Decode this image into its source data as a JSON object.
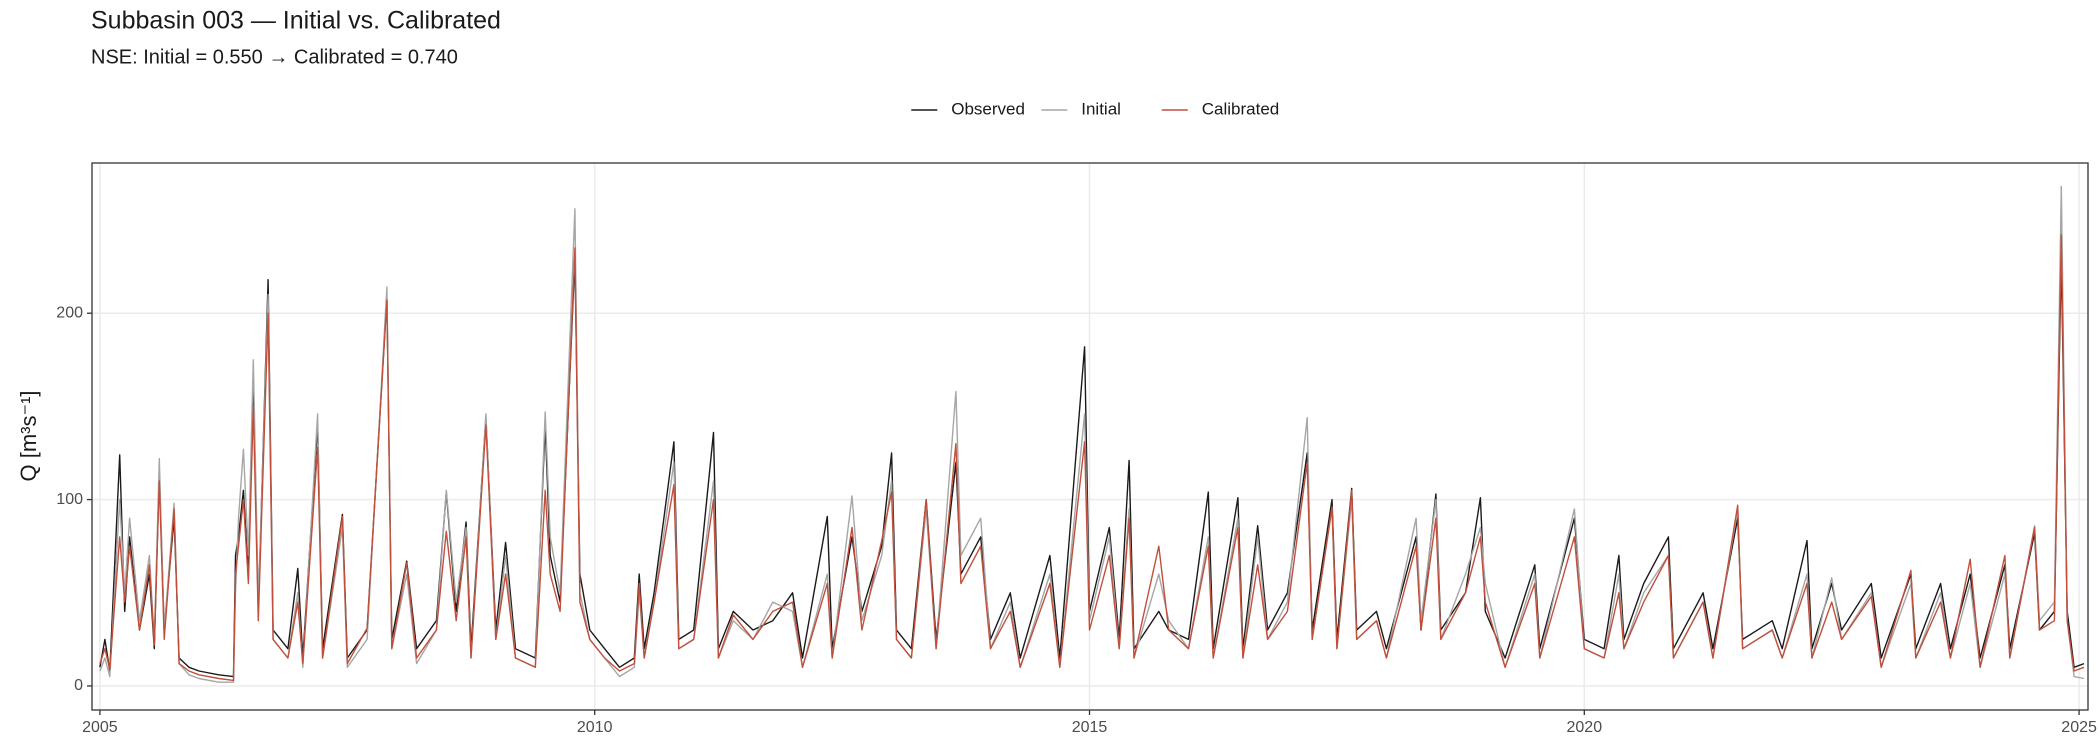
{
  "chart_data": {
    "type": "line",
    "title": "Subbasin 003 — Initial vs. Calibrated",
    "subtitle": "NSE:  Initial = 0.550  →  Calibrated = 0.740",
    "y_label": "Q [m³s⁻¹]",
    "xlim": [
      2004.92,
      2025.09
    ],
    "xticks": [
      2005,
      2010,
      2015,
      2020,
      2025
    ],
    "ylim": [
      -12.9,
      280.6
    ],
    "yticks": [
      0,
      100,
      200
    ],
    "grid": true,
    "legend": "top",
    "x": [
      2005.0,
      2005.05,
      2005.1,
      2005.2,
      2005.25,
      2005.3,
      2005.4,
      2005.5,
      2005.55,
      2005.6,
      2005.65,
      2005.75,
      2005.8,
      2005.9,
      2006.0,
      2006.2,
      2006.35,
      2006.37,
      2006.4,
      2006.45,
      2006.5,
      2006.55,
      2006.6,
      2006.7,
      2006.75,
      2006.9,
      2007.0,
      2007.05,
      2007.2,
      2007.25,
      2007.45,
      2007.5,
      2007.7,
      2007.9,
      2007.95,
      2008.1,
      2008.2,
      2008.4,
      2008.5,
      2008.6,
      2008.7,
      2008.75,
      2008.9,
      2009.0,
      2009.1,
      2009.2,
      2009.4,
      2009.5,
      2009.55,
      2009.65,
      2009.8,
      2009.85,
      2009.95,
      2010.1,
      2010.25,
      2010.4,
      2010.45,
      2010.5,
      2010.6,
      2010.8,
      2010.85,
      2011.0,
      2011.2,
      2011.25,
      2011.4,
      2011.6,
      2011.8,
      2012.0,
      2012.1,
      2012.35,
      2012.4,
      2012.6,
      2012.7,
      2012.9,
      2013.0,
      2013.05,
      2013.2,
      2013.35,
      2013.45,
      2013.65,
      2013.7,
      2013.9,
      2014.0,
      2014.2,
      2014.3,
      2014.6,
      2014.7,
      2014.95,
      2015.0,
      2015.2,
      2015.3,
      2015.4,
      2015.45,
      2015.7,
      2015.8,
      2016.0,
      2016.2,
      2016.25,
      2016.5,
      2016.55,
      2016.7,
      2016.8,
      2017.0,
      2017.2,
      2017.25,
      2017.45,
      2017.5,
      2017.65,
      2017.7,
      2017.9,
      2018.0,
      2018.3,
      2018.35,
      2018.5,
      2018.55,
      2018.8,
      2018.95,
      2019.0,
      2019.2,
      2019.5,
      2019.55,
      2019.9,
      2020.0,
      2020.2,
      2020.35,
      2020.4,
      2020.6,
      2020.85,
      2020.9,
      2021.2,
      2021.3,
      2021.55,
      2021.6,
      2021.9,
      2022.0,
      2022.25,
      2022.3,
      2022.5,
      2022.6,
      2022.9,
      2023.0,
      2023.3,
      2023.35,
      2023.6,
      2023.7,
      2023.9,
      2024.0,
      2024.25,
      2024.3,
      2024.55,
      2024.6,
      2024.75,
      2024.82,
      2024.88,
      2024.95,
      2025.05
    ],
    "series": [
      {
        "name": "Observed",
        "color": "#1a1a1a",
        "values": [
          10,
          25,
          8,
          124,
          40,
          80,
          30,
          60,
          20,
          115,
          30,
          90,
          15,
          10,
          8,
          6,
          5,
          70,
          80,
          105,
          60,
          164,
          40,
          218,
          30,
          20,
          63,
          15,
          140,
          20,
          92,
          15,
          30,
          208,
          25,
          67,
          20,
          35,
          104,
          40,
          88,
          20,
          144,
          30,
          77,
          20,
          15,
          140,
          70,
          45,
          230,
          60,
          30,
          20,
          10,
          15,
          60,
          20,
          50,
          131,
          25,
          30,
          136,
          20,
          40,
          30,
          35,
          50,
          15,
          91,
          20,
          80,
          40,
          75,
          125,
          30,
          20,
          100,
          25,
          120,
          60,
          80,
          25,
          50,
          15,
          70,
          15,
          182,
          40,
          85,
          25,
          121,
          20,
          40,
          30,
          25,
          104,
          20,
          101,
          20,
          86,
          30,
          50,
          125,
          30,
          100,
          25,
          106,
          30,
          40,
          20,
          80,
          30,
          103,
          30,
          50,
          101,
          40,
          15,
          65,
          20,
          90,
          25,
          20,
          70,
          25,
          55,
          80,
          20,
          50,
          20,
          90,
          25,
          35,
          20,
          78,
          20,
          55,
          30,
          55,
          15,
          60,
          20,
          55,
          20,
          60,
          15,
          65,
          20,
          82,
          30,
          40,
          230,
          40,
          10,
          12
        ]
      },
      {
        "name": "Initial",
        "color": "#a6a6a6",
        "values": [
          8,
          15,
          5,
          100,
          50,
          90,
          35,
          70,
          25,
          122,
          30,
          98,
          12,
          6,
          4,
          2,
          2,
          50,
          90,
          127,
          70,
          175,
          45,
          210,
          25,
          15,
          50,
          10,
          146,
          15,
          85,
          10,
          25,
          214,
          20,
          60,
          12,
          30,
          105,
          45,
          85,
          15,
          146,
          25,
          70,
          15,
          10,
          147,
          80,
          50,
          256,
          50,
          25,
          15,
          5,
          10,
          50,
          15,
          45,
          120,
          20,
          25,
          110,
          15,
          35,
          25,
          45,
          40,
          10,
          60,
          15,
          102,
          35,
          70,
          110,
          25,
          15,
          95,
          20,
          158,
          70,
          90,
          20,
          45,
          10,
          60,
          10,
          146,
          35,
          80,
          20,
          95,
          15,
          60,
          35,
          20,
          80,
          15,
          90,
          15,
          80,
          25,
          45,
          144,
          25,
          95,
          20,
          100,
          25,
          35,
          15,
          90,
          35,
          100,
          25,
          60,
          85,
          55,
          10,
          60,
          15,
          95,
          20,
          15,
          60,
          20,
          50,
          70,
          15,
          45,
          15,
          95,
          20,
          30,
          15,
          60,
          15,
          58,
          25,
          50,
          10,
          55,
          15,
          50,
          15,
          55,
          10,
          60,
          15,
          86,
          35,
          45,
          268,
          35,
          5,
          4
        ]
      },
      {
        "name": "Calibrated",
        "color": "#c0503c",
        "values": [
          12,
          20,
          9,
          80,
          45,
          75,
          30,
          65,
          22,
          110,
          25,
          95,
          12,
          8,
          6,
          4,
          3,
          60,
          75,
          100,
          55,
          150,
          35,
          200,
          25,
          15,
          45,
          12,
          128,
          15,
          91,
          12,
          31,
          207,
          20,
          66,
          15,
          30,
          83,
          35,
          80,
          15,
          140,
          25,
          60,
          15,
          10,
          105,
          60,
          40,
          235,
          45,
          25,
          15,
          8,
          12,
          55,
          15,
          45,
          108,
          20,
          25,
          100,
          15,
          38,
          25,
          40,
          45,
          10,
          55,
          15,
          85,
          30,
          78,
          104,
          25,
          15,
          100,
          20,
          130,
          55,
          75,
          20,
          40,
          10,
          55,
          10,
          131,
          30,
          70,
          20,
          90,
          15,
          75,
          30,
          20,
          75,
          15,
          85,
          15,
          65,
          25,
          40,
          120,
          25,
          96,
          20,
          105,
          25,
          35,
          15,
          75,
          30,
          90,
          25,
          50,
          80,
          45,
          10,
          55,
          15,
          80,
          20,
          15,
          50,
          20,
          45,
          70,
          15,
          45,
          15,
          97,
          20,
          30,
          15,
          55,
          15,
          45,
          25,
          48,
          10,
          62,
          15,
          45,
          15,
          68,
          10,
          70,
          15,
          85,
          30,
          35,
          242,
          35,
          8,
          10
        ]
      }
    ]
  }
}
